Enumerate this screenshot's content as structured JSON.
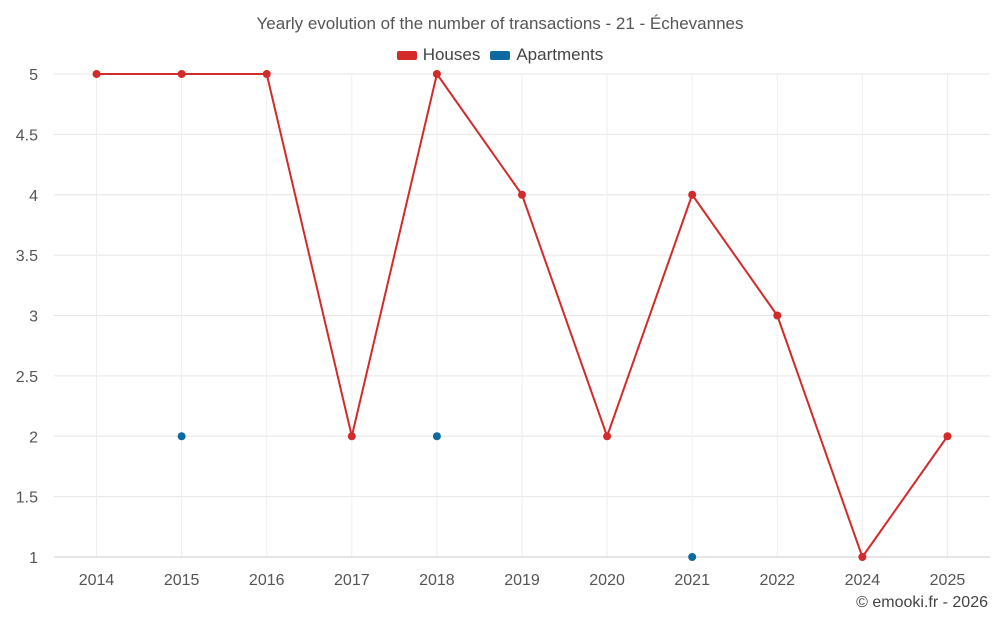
{
  "chart_data": {
    "type": "line",
    "title": "Yearly evolution of the number of transactions - 21 - Échevannes",
    "xlabel": "",
    "ylabel": "",
    "categories": [
      "2014",
      "2015",
      "2016",
      "2017",
      "2018",
      "2019",
      "2020",
      "2021",
      "2022",
      "2024",
      "2025"
    ],
    "y_ticks": [
      "1",
      "1.5",
      "2",
      "2.5",
      "3",
      "3.5",
      "4",
      "4.5",
      "5"
    ],
    "ylim": [
      1,
      5
    ],
    "grid": true,
    "legend_position": "top-center",
    "series": [
      {
        "name": "Houses",
        "color": "#d32a2a",
        "values": [
          5,
          5,
          5,
          2,
          5,
          4,
          2,
          4,
          3,
          1,
          2
        ]
      },
      {
        "name": "Apartments",
        "color": "#0e6aa0",
        "values": [
          null,
          2,
          null,
          null,
          2,
          null,
          null,
          1,
          null,
          null,
          null
        ]
      }
    ]
  },
  "credit": "© emooki.fr - 2026"
}
